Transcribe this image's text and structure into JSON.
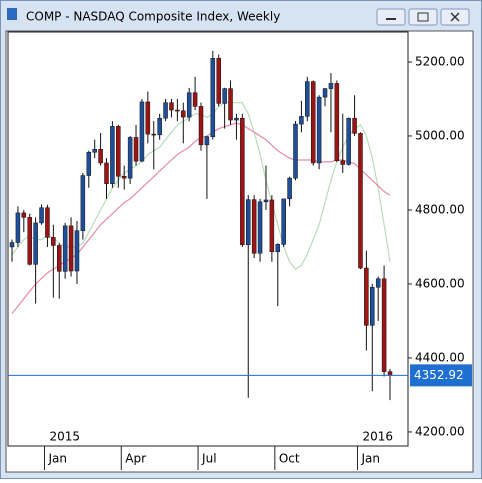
{
  "window_title": "COMP - NASDAQ Composite Index, Weekly",
  "chart_data": {
    "type": "candlestick",
    "categories": [
      null,
      null,
      null,
      null,
      null,
      null,
      "Jan",
      null,
      null,
      null,
      null,
      null,
      null,
      null,
      null,
      null,
      null,
      null,
      null,
      "Apr",
      null,
      null,
      null,
      null,
      null,
      null,
      null,
      null,
      null,
      null,
      null,
      null,
      "Jul",
      null,
      null,
      null,
      null,
      null,
      null,
      null,
      null,
      null,
      null,
      null,
      null,
      "Oct",
      null,
      null,
      null,
      null,
      null,
      null,
      null,
      null,
      null,
      null,
      null,
      null,
      null,
      "Jan",
      null,
      null,
      null,
      null,
      null
    ],
    "year_labels": [
      "2015",
      "2016"
    ],
    "open": [
      4700,
      4712,
      4792,
      4780,
      4653,
      4765,
      4806,
      4726,
      4704,
      4634,
      4757,
      4635,
      4744,
      4893,
      4956,
      4964,
      4927,
      4871,
      5026,
      4891,
      4886,
      4996,
      4932,
      5092,
      5005,
      5003,
      5048,
      5090,
      5070,
      5068,
      5051,
      5117,
      5080,
      4976,
      4998,
      5210,
      5088,
      5128,
      5043,
      5048,
      4706,
      4828,
      4683,
      4822,
      4827,
      4687,
      4707,
      4830,
      4886,
      5032,
      5053,
      5147,
      4927,
      5105,
      5128,
      5142,
      4933,
      4923,
      5048,
      5007,
      4643,
      4488,
      4591,
      4614,
      4363
    ],
    "high": [
      4720,
      4810,
      4800,
      4790,
      4780,
      4815,
      4814,
      4760,
      4710,
      4765,
      4780,
      4770,
      4900,
      4960,
      4990,
      5008,
      4940,
      5040,
      5030,
      4920,
      5000,
      5030,
      5100,
      5120,
      5040,
      5060,
      5100,
      5100,
      5100,
      5090,
      5130,
      5160,
      5090,
      5000,
      5230,
      5220,
      5130,
      5150,
      5060,
      5060,
      4840,
      4840,
      4830,
      4920,
      4840,
      4710,
      4830,
      4890,
      5040,
      5095,
      5160,
      5150,
      5110,
      5130,
      5170,
      5150,
      5060,
      5050,
      5110,
      5010,
      4690,
      4600,
      4620,
      4650,
      4370
    ],
    "low": [
      4660,
      4700,
      4740,
      4650,
      4547,
      4760,
      4700,
      4563,
      4560,
      4614,
      4620,
      4600,
      4720,
      4860,
      4940,
      4920,
      4830,
      4860,
      4860,
      4855,
      4870,
      4920,
      4930,
      4980,
      4910,
      4990,
      5040,
      5050,
      5040,
      4980,
      5040,
      5070,
      4960,
      4830,
      4990,
      5080,
      5020,
      5030,
      4990,
      4700,
      4292,
      4670,
      4660,
      4800,
      4660,
      4540,
      4700,
      4810,
      4880,
      5010,
      5040,
      4920,
      4910,
      5080,
      5010,
      4930,
      4900,
      4920,
      5000,
      4640,
      4420,
      4310,
      4500,
      4350,
      4286
    ],
    "close": [
      4712,
      4792,
      4780,
      4653,
      4765,
      4806,
      4726,
      4704,
      4634,
      4757,
      4635,
      4744,
      4893,
      4956,
      4964,
      4927,
      4871,
      5026,
      4891,
      4886,
      4996,
      4932,
      5092,
      5005,
      5003,
      5048,
      5090,
      5070,
      5068,
      5051,
      5117,
      5080,
      4976,
      4998,
      5210,
      5088,
      5128,
      5043,
      5048,
      4706,
      4828,
      4683,
      4822,
      4827,
      4687,
      4707,
      4830,
      4886,
      5032,
      5053,
      5147,
      4927,
      5105,
      5128,
      5142,
      4933,
      4923,
      5048,
      5007,
      4643,
      4488,
      4591,
      4614,
      4363,
      4352.92
    ],
    "up_color": "#1f4f9a",
    "down_color": "#9c1414",
    "moving_averages": [
      {
        "color": "#b8dcb8",
        "values": [
          4680,
          4700,
          4720,
          4730,
          4720,
          4720,
          4730,
          4725,
          4710,
          4700,
          4700,
          4700,
          4710,
          4740,
          4770,
          4800,
          4830,
          4860,
          4880,
          4900,
          4910,
          4920,
          4930,
          4950,
          4960,
          4970,
          4990,
          5010,
          5030,
          5040,
          5050,
          5060,
          5060,
          5050,
          5060,
          5080,
          5090,
          5090,
          5090,
          5090,
          5060,
          5010,
          4950,
          4880,
          4820,
          4760,
          4700,
          4660,
          4640,
          4650,
          4680,
          4720,
          4760,
          4820,
          4880,
          4930,
          4970,
          5000,
          5020,
          5030,
          5000,
          4940,
          4860,
          4760,
          4660
        ]
      },
      {
        "color": "#e98aa6",
        "values": [
          4520,
          4540,
          4560,
          4580,
          4600,
          4615,
          4630,
          4640,
          4650,
          4660,
          4670,
          4680,
          4700,
          4720,
          4740,
          4760,
          4775,
          4790,
          4805,
          4820,
          4830,
          4845,
          4860,
          4875,
          4890,
          4905,
          4920,
          4935,
          4950,
          4960,
          4970,
          4985,
          4995,
          5000,
          5010,
          5020,
          5025,
          5030,
          5035,
          5030,
          5020,
          5010,
          5000,
          4990,
          4975,
          4960,
          4950,
          4940,
          4935,
          4935,
          4935,
          4935,
          4930,
          4930,
          4930,
          4935,
          4935,
          4930,
          4925,
          4910,
          4895,
          4880,
          4865,
          4850,
          4840
        ]
      }
    ],
    "last_price": {
      "value": 4352.92,
      "label": "4352.92",
      "color": "#1e6fd0"
    },
    "ylim": [
      4162,
      5281
    ],
    "yticks": [
      {
        "value": 4200,
        "label": "4200.00"
      },
      {
        "value": 4400,
        "label": "4400.00"
      },
      {
        "value": 4600,
        "label": "4600.00"
      },
      {
        "value": 4800,
        "label": "4800.00"
      },
      {
        "value": 5000,
        "label": "5000.00"
      },
      {
        "value": 5200,
        "label": "5200.00"
      }
    ]
  }
}
